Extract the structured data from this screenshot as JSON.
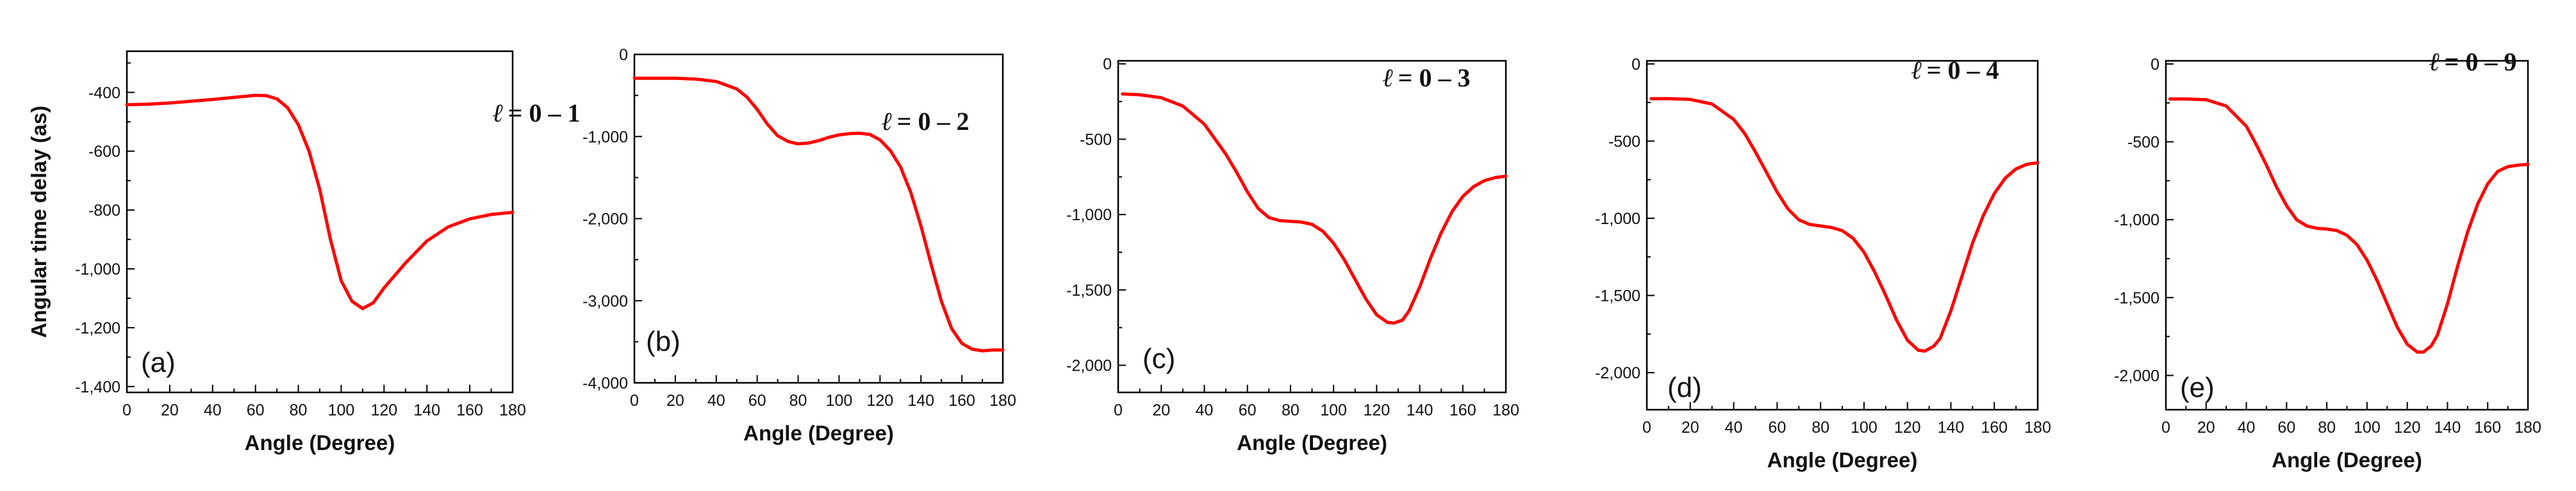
{
  "chart_data": [
    {
      "type": "line",
      "panel_label": "(a)",
      "ell_symbol": "ℓ",
      "ell_range": "= 0 – 1",
      "xlabel": "Angle (Degree)",
      "ylabel": "Angular time delay (as)",
      "xlim": [
        0,
        180
      ],
      "ylim": [
        -1420,
        -260
      ],
      "xticks": [
        0,
        20,
        40,
        60,
        80,
        100,
        120,
        140,
        160,
        180
      ],
      "xtick_labels": [
        "0",
        "20",
        "40",
        "60",
        "80",
        "100",
        "120",
        "140",
        "160",
        "180"
      ],
      "yticks": [
        -400,
        -600,
        -800,
        -1000,
        -1200,
        -1400
      ],
      "ytick_labels": [
        "-400",
        "-600",
        "-800",
        "-1,000",
        "-1,200",
        "-1,400"
      ],
      "series": [
        {
          "name": "time delay",
          "color": "#ff0000",
          "x": [
            0,
            10,
            20,
            30,
            40,
            50,
            60,
            65,
            70,
            75,
            80,
            85,
            90,
            95,
            100,
            105,
            110,
            115,
            120,
            130,
            140,
            150,
            160,
            170,
            180
          ],
          "y": [
            -442,
            -440,
            -436,
            -430,
            -424,
            -417,
            -410,
            -411,
            -422,
            -452,
            -510,
            -600,
            -730,
            -900,
            -1040,
            -1110,
            -1135,
            -1115,
            -1065,
            -980,
            -905,
            -857,
            -830,
            -815,
            -808
          ]
        }
      ]
    },
    {
      "type": "line",
      "panel_label": "(b)",
      "ell_symbol": "ℓ",
      "ell_range": "= 0 – 2",
      "xlabel": "Angle (Degree)",
      "ylabel": "",
      "xlim": [
        0,
        180
      ],
      "ylim": [
        -4000,
        0
      ],
      "xticks": [
        0,
        20,
        40,
        60,
        80,
        100,
        120,
        140,
        160,
        180
      ],
      "xtick_labels": [
        "0",
        "20",
        "40",
        "60",
        "80",
        "100",
        "120",
        "140",
        "160",
        "180"
      ],
      "yticks": [
        0,
        -1000,
        -2000,
        -3000,
        -4000
      ],
      "ytick_labels": [
        "0",
        "-1,000",
        "-2,000",
        "-3,000",
        "-4,000"
      ],
      "series": [
        {
          "name": "time delay",
          "color": "#ff0000",
          "x": [
            0,
            10,
            20,
            30,
            40,
            50,
            55,
            60,
            65,
            70,
            75,
            80,
            85,
            90,
            95,
            100,
            105,
            110,
            115,
            120,
            125,
            130,
            135,
            140,
            145,
            150,
            155,
            160,
            165,
            170,
            175,
            180
          ],
          "y": [
            -290,
            -290,
            -290,
            -300,
            -330,
            -420,
            -520,
            -670,
            -850,
            -990,
            -1060,
            -1090,
            -1080,
            -1050,
            -1010,
            -980,
            -965,
            -960,
            -975,
            -1040,
            -1170,
            -1370,
            -1680,
            -2090,
            -2560,
            -3010,
            -3340,
            -3520,
            -3590,
            -3610,
            -3600,
            -3600
          ]
        }
      ]
    },
    {
      "type": "line",
      "panel_label": "(c)",
      "ell_symbol": "ℓ",
      "ell_range": "= 0 – 3",
      "xlabel": "Angle (Degree)",
      "ylabel": "",
      "xlim": [
        0,
        180
      ],
      "ylim": [
        -2180,
        20
      ],
      "xticks": [
        0,
        20,
        40,
        60,
        80,
        100,
        120,
        140,
        160,
        180
      ],
      "xtick_labels": [
        "0",
        "20",
        "40",
        "60",
        "80",
        "100",
        "120",
        "140",
        "160",
        "180"
      ],
      "yticks": [
        0,
        -500,
        -1000,
        -1500,
        -2000
      ],
      "ytick_labels": [
        "0",
        "-500",
        "-1,000",
        "-1,500",
        "-2,000"
      ],
      "series": [
        {
          "name": "time delay",
          "color": "#ff0000",
          "x": [
            2,
            10,
            20,
            30,
            40,
            50,
            55,
            60,
            65,
            70,
            75,
            80,
            85,
            90,
            95,
            100,
            105,
            110,
            115,
            120,
            125,
            128,
            132,
            135,
            140,
            145,
            150,
            155,
            160,
            165,
            170,
            175,
            180
          ],
          "y": [
            -200,
            -205,
            -225,
            -280,
            -400,
            -600,
            -720,
            -850,
            -960,
            -1020,
            -1040,
            -1045,
            -1050,
            -1065,
            -1110,
            -1190,
            -1300,
            -1430,
            -1560,
            -1665,
            -1715,
            -1720,
            -1700,
            -1640,
            -1480,
            -1290,
            -1120,
            -980,
            -880,
            -815,
            -775,
            -755,
            -745
          ]
        }
      ]
    },
    {
      "type": "line",
      "panel_label": "(d)",
      "ell_symbol": "ℓ",
      "ell_range": "= 0 – 4",
      "xlabel": "Angle (Degree)",
      "ylabel": "",
      "xlim": [
        0,
        180
      ],
      "ylim": [
        -2240,
        20
      ],
      "xticks": [
        0,
        20,
        40,
        60,
        80,
        100,
        120,
        140,
        160,
        180
      ],
      "xtick_labels": [
        "0",
        "20",
        "40",
        "60",
        "80",
        "100",
        "120",
        "140",
        "160",
        "180"
      ],
      "yticks": [
        0,
        -500,
        -1000,
        -1500,
        -2000
      ],
      "ytick_labels": [
        "0",
        "-500",
        "-1,000",
        "-1,500",
        "-2,000"
      ],
      "series": [
        {
          "name": "time delay",
          "color": "#ff0000",
          "x": [
            2,
            10,
            20,
            30,
            40,
            45,
            50,
            55,
            60,
            65,
            70,
            75,
            80,
            85,
            90,
            95,
            100,
            105,
            110,
            115,
            120,
            125,
            128,
            132,
            135,
            140,
            145,
            150,
            155,
            160,
            165,
            170,
            175,
            180
          ],
          "y": [
            -225,
            -225,
            -230,
            -260,
            -360,
            -450,
            -570,
            -700,
            -830,
            -940,
            -1010,
            -1040,
            -1050,
            -1060,
            -1080,
            -1130,
            -1220,
            -1350,
            -1500,
            -1660,
            -1790,
            -1855,
            -1860,
            -1830,
            -1780,
            -1600,
            -1380,
            -1160,
            -980,
            -840,
            -740,
            -680,
            -650,
            -640
          ]
        }
      ]
    },
    {
      "type": "line",
      "panel_label": "(e)",
      "ell_symbol": "ℓ",
      "ell_range": "= 0 – 9",
      "xlabel": "Angle (Degree)",
      "ylabel": "",
      "xlim": [
        0,
        180
      ],
      "ylim": [
        -2220,
        20
      ],
      "xticks": [
        0,
        20,
        40,
        60,
        80,
        100,
        120,
        140,
        160,
        180
      ],
      "xtick_labels": [
        "0",
        "20",
        "40",
        "60",
        "80",
        "100",
        "120",
        "140",
        "160",
        "180"
      ],
      "yticks": [
        0,
        -500,
        -1000,
        -1500,
        -2000
      ],
      "ytick_labels": [
        "0",
        "-500",
        "-1,000",
        "-1,500",
        "-2,000"
      ],
      "series": [
        {
          "name": "time delay",
          "color": "#ff0000",
          "x": [
            2,
            10,
            20,
            30,
            40,
            45,
            50,
            55,
            60,
            65,
            70,
            75,
            80,
            85,
            90,
            95,
            100,
            105,
            110,
            115,
            120,
            125,
            128,
            132,
            135,
            140,
            145,
            150,
            155,
            160,
            165,
            170,
            175,
            180
          ],
          "y": [
            -225,
            -225,
            -230,
            -270,
            -400,
            -520,
            -650,
            -790,
            -910,
            -1000,
            -1040,
            -1055,
            -1060,
            -1070,
            -1100,
            -1160,
            -1260,
            -1390,
            -1540,
            -1690,
            -1800,
            -1850,
            -1850,
            -1810,
            -1740,
            -1540,
            -1300,
            -1080,
            -900,
            -770,
            -690,
            -660,
            -650,
            -645
          ]
        }
      ]
    }
  ]
}
